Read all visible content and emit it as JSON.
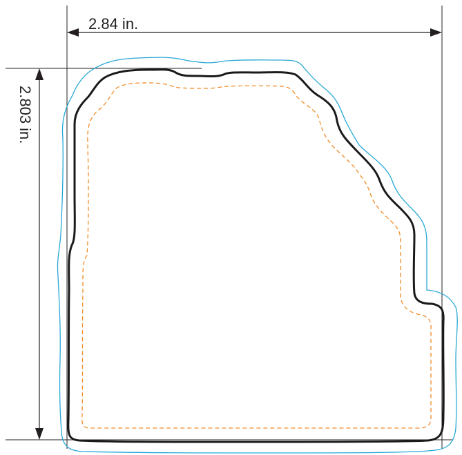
{
  "dimensions": {
    "width_label": "2.84 in.",
    "height_label": "2.803 in."
  },
  "colors": {
    "dimension_lines": "#231f20",
    "cut_line": "#1a1a1a",
    "bleed_line": "#29a8d6",
    "safe_line": "#f28c28"
  }
}
